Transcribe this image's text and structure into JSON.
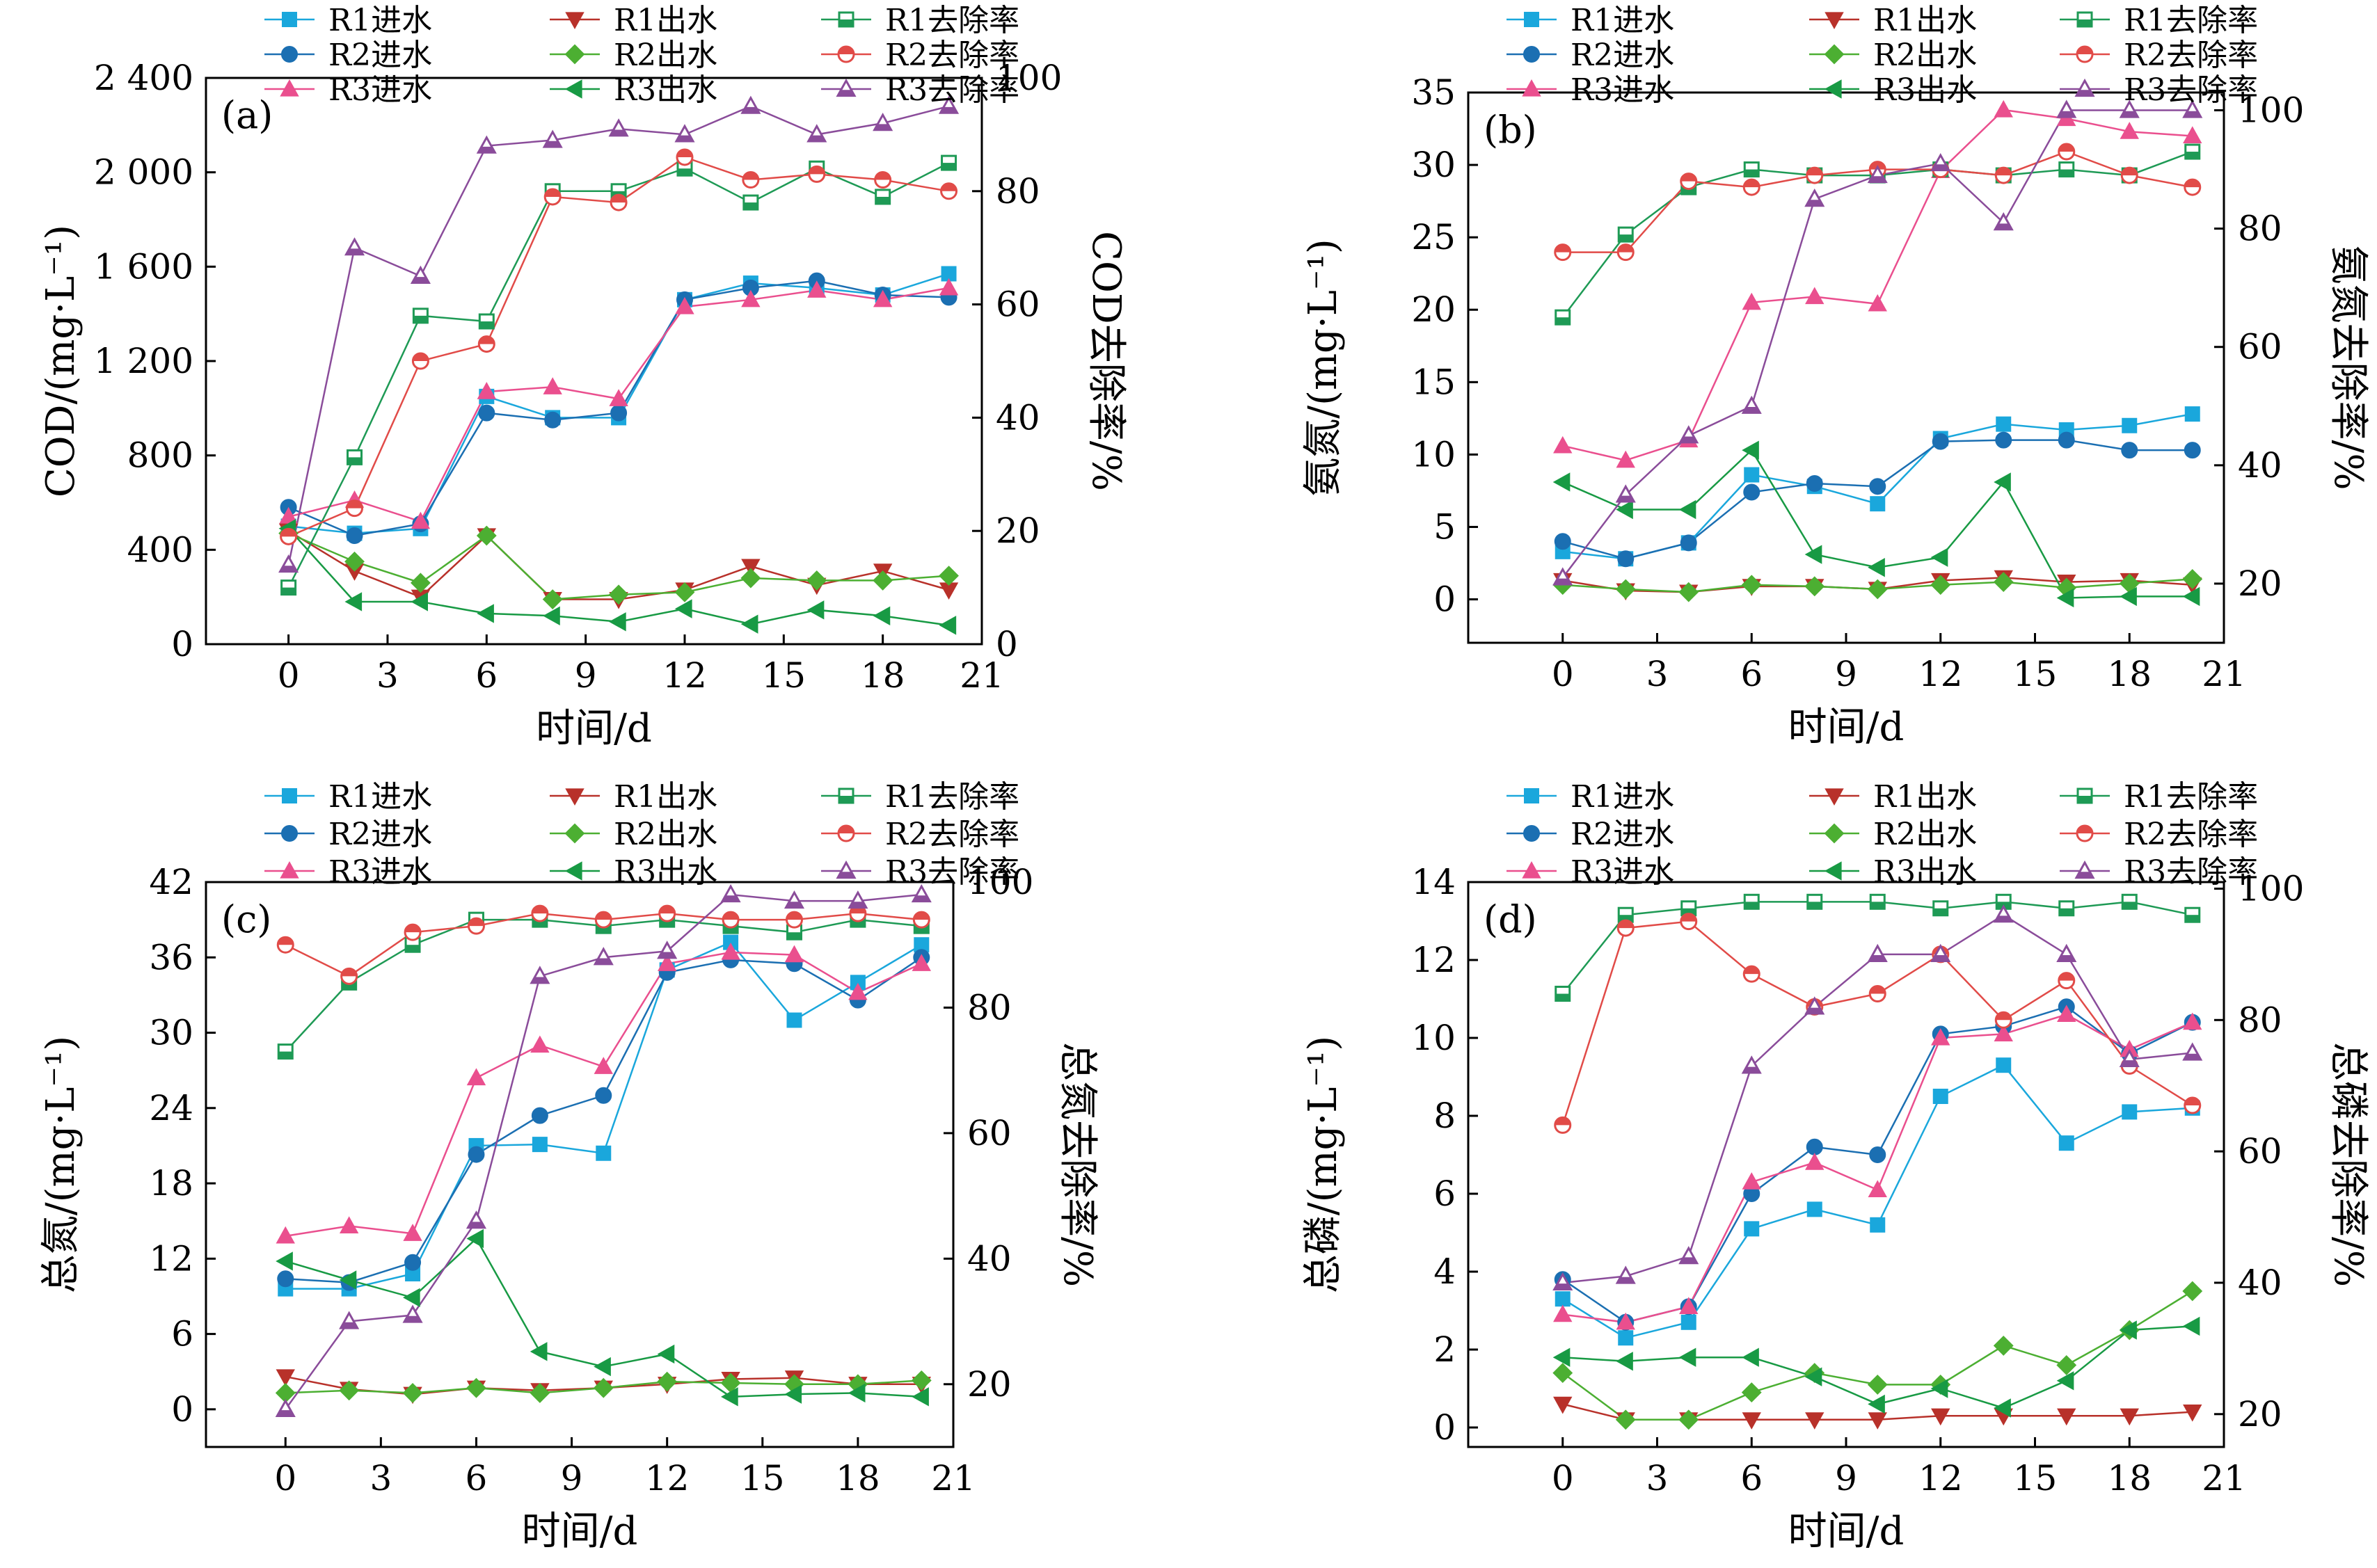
{
  "colors": {
    "R1进水": "#1aa7dc",
    "R1出水": "#b8312a",
    "R1去除率": "#1e9a55",
    "R2进水": "#1b6fb2",
    "R2出水": "#4caf32",
    "R2去除率": "#e14b48",
    "R3进水": "#ea4f8e",
    "R3出水": "#189a44",
    "R3去除率": "#8a4c9a"
  },
  "legend": {
    "items": [
      "R1进水",
      "R1出水",
      "R1去除率",
      "R2进水",
      "R2出水",
      "R2去除率",
      "R3进水",
      "R3出水",
      "R3去除率"
    ],
    "markers": [
      "square",
      "triangle-down",
      "square-half",
      "circle",
      "diamond",
      "circle-half",
      "triangle-up",
      "triangle-left",
      "triangle-up-half"
    ]
  },
  "chart_data": [
    {
      "type": "line",
      "panel_label": "(a)",
      "xlabel": "时间/d",
      "ylabel": "COD/(mg·L⁻¹)",
      "ylabel_right": "COD去除率/%",
      "xlim": [
        -2.5,
        21
      ],
      "ylim": [
        0,
        2400
      ],
      "ylim_right": [
        0,
        100
      ],
      "xticks": [
        0,
        3,
        6,
        9,
        12,
        15,
        18,
        21
      ],
      "yticks": [
        0,
        400,
        800,
        1200,
        1600,
        2000,
        2400
      ],
      "ytick_labels": [
        "0",
        "400",
        "800",
        "1 200",
        "1 600",
        "2 000",
        "2 400"
      ],
      "yticks_right": [
        0,
        20,
        40,
        60,
        80,
        100
      ],
      "x": [
        0,
        2,
        4,
        6,
        8,
        10,
        12,
        14,
        16,
        18,
        20
      ],
      "series": [
        {
          "name": "R1进水",
          "axis": "left",
          "values": [
            500,
            470,
            490,
            1050,
            960,
            960,
            1460,
            1530,
            1510,
            1480,
            1570
          ]
        },
        {
          "name": "R2进水",
          "axis": "left",
          "values": [
            580,
            460,
            510,
            980,
            950,
            980,
            1460,
            1510,
            1540,
            1480,
            1470
          ]
        },
        {
          "name": "R3进水",
          "axis": "left",
          "values": [
            540,
            610,
            520,
            1070,
            1090,
            1040,
            1430,
            1460,
            1500,
            1460,
            1510
          ]
        },
        {
          "name": "R1出水",
          "axis": "left",
          "values": [
            480,
            310,
            200,
            460,
            190,
            190,
            230,
            330,
            250,
            310,
            230
          ]
        },
        {
          "name": "R2出水",
          "axis": "left",
          "values": [
            470,
            350,
            260,
            460,
            190,
            210,
            220,
            280,
            270,
            270,
            290
          ]
        },
        {
          "name": "R3出水",
          "axis": "left",
          "values": [
            490,
            180,
            180,
            130,
            120,
            95,
            150,
            85,
            145,
            120,
            80
          ]
        },
        {
          "name": "R1去除率",
          "axis": "right",
          "values": [
            10,
            33,
            58,
            57,
            80,
            80,
            84,
            78,
            84,
            79,
            85
          ]
        },
        {
          "name": "R2去除率",
          "axis": "right",
          "values": [
            19,
            24,
            50,
            53,
            79,
            78,
            86,
            82,
            83,
            82,
            80
          ]
        },
        {
          "name": "R3去除率",
          "axis": "right",
          "values": [
            14,
            70,
            65,
            88,
            89,
            91,
            90,
            95,
            90,
            92,
            95
          ]
        }
      ]
    },
    {
      "type": "line",
      "panel_label": "(b)",
      "xlabel": "时间/d",
      "ylabel": "氨氮/(mg·L⁻¹)",
      "ylabel_right": "氨氮去除率/%",
      "xlim": [
        -3,
        21
      ],
      "ylim": [
        -3,
        35
      ],
      "ylim_right": [
        10,
        103
      ],
      "xticks": [
        0,
        3,
        6,
        9,
        12,
        15,
        18,
        21
      ],
      "yticks": [
        0,
        5,
        10,
        15,
        20,
        25,
        30,
        35
      ],
      "ytick_labels": [
        "0",
        "5",
        "10",
        "15",
        "20",
        "25",
        "30",
        "35"
      ],
      "yticks_right": [
        20,
        40,
        60,
        80,
        100
      ],
      "x": [
        0,
        2,
        4,
        6,
        8,
        10,
        12,
        14,
        16,
        18,
        20
      ],
      "series": [
        {
          "name": "R1进水",
          "axis": "left",
          "values": [
            3.3,
            2.8,
            3.9,
            8.6,
            7.8,
            6.6,
            11.1,
            12.1,
            11.7,
            12.0,
            12.8
          ]
        },
        {
          "name": "R2进水",
          "axis": "left",
          "values": [
            4.0,
            2.8,
            3.9,
            7.4,
            8.0,
            7.8,
            10.9,
            11.0,
            11.0,
            10.3,
            10.3
          ]
        },
        {
          "name": "R3进水",
          "axis": "left",
          "values": [
            10.6,
            9.6,
            11.0,
            20.5,
            20.9,
            20.4,
            29.6,
            33.8,
            33.2,
            32.3,
            32.0
          ]
        },
        {
          "name": "R1出水",
          "axis": "left",
          "values": [
            1.3,
            0.6,
            0.5,
            0.9,
            0.9,
            0.7,
            1.3,
            1.5,
            1.2,
            1.3,
            1.0
          ]
        },
        {
          "name": "R2出水",
          "axis": "left",
          "values": [
            1.0,
            0.7,
            0.5,
            1.0,
            0.9,
            0.7,
            1.0,
            1.2,
            0.8,
            1.1,
            1.4
          ]
        },
        {
          "name": "R3出水",
          "axis": "left",
          "values": [
            8.1,
            6.2,
            6.2,
            10.3,
            3.1,
            2.2,
            2.9,
            8.1,
            0.1,
            0.2,
            0.2
          ]
        },
        {
          "name": "R1去除率",
          "axis": "right",
          "values": [
            65,
            79,
            87,
            90,
            89,
            89,
            90,
            89,
            90,
            89,
            93
          ]
        },
        {
          "name": "R2去除率",
          "axis": "right",
          "values": [
            76,
            76,
            88,
            87,
            89,
            90,
            90,
            89,
            93,
            89,
            87
          ]
        },
        {
          "name": "R3去除率",
          "axis": "right",
          "values": [
            21,
            35,
            45,
            50,
            85,
            89,
            91,
            81,
            100,
            100,
            100
          ]
        }
      ]
    },
    {
      "type": "line",
      "panel_label": "(c)",
      "xlabel": "时间/d",
      "ylabel": "总氮/(mg·L⁻¹)",
      "ylabel_right": "总氮去除率/%",
      "xlim": [
        -2.5,
        21
      ],
      "ylim": [
        -3,
        42
      ],
      "ylim_right": [
        10,
        100
      ],
      "xticks": [
        0,
        3,
        6,
        9,
        12,
        15,
        18,
        21
      ],
      "yticks": [
        0,
        6,
        12,
        18,
        24,
        30,
        36,
        42
      ],
      "ytick_labels": [
        "0",
        "6",
        "12",
        "18",
        "24",
        "30",
        "36",
        "42"
      ],
      "yticks_right": [
        20,
        40,
        60,
        80,
        100
      ],
      "x": [
        0,
        2,
        4,
        6,
        8,
        10,
        12,
        14,
        16,
        18,
        20
      ],
      "series": [
        {
          "name": "R1进水",
          "axis": "left",
          "values": [
            9.6,
            9.6,
            10.8,
            21.0,
            21.1,
            20.4,
            35.0,
            37.2,
            31.0,
            34.0,
            37.0
          ]
        },
        {
          "name": "R2进水",
          "axis": "left",
          "values": [
            10.4,
            10.1,
            11.7,
            20.3,
            23.4,
            25.0,
            34.8,
            35.8,
            35.5,
            32.6,
            36.0
          ]
        },
        {
          "name": "R3进水",
          "axis": "left",
          "values": [
            13.8,
            14.6,
            14.0,
            26.4,
            29.0,
            27.3,
            35.5,
            36.4,
            36.2,
            33.2,
            35.5
          ]
        },
        {
          "name": "R1出水",
          "axis": "left",
          "values": [
            2.6,
            1.6,
            1.2,
            1.7,
            1.5,
            1.7,
            2.0,
            2.4,
            2.5,
            2.0,
            2.0
          ]
        },
        {
          "name": "R2出水",
          "axis": "left",
          "values": [
            1.3,
            1.5,
            1.3,
            1.7,
            1.3,
            1.7,
            2.2,
            2.1,
            2.0,
            2.0,
            2.3
          ]
        },
        {
          "name": "R3出水",
          "axis": "left",
          "values": [
            11.8,
            10.3,
            8.9,
            13.6,
            4.6,
            3.4,
            4.4,
            1.0,
            1.2,
            1.3,
            1.0
          ]
        },
        {
          "name": "R1去除率",
          "axis": "right",
          "values": [
            73,
            84,
            90,
            94,
            94,
            93,
            94,
            93,
            92,
            94,
            93
          ]
        },
        {
          "name": "R2去除率",
          "axis": "right",
          "values": [
            90,
            85,
            92,
            93,
            95,
            94,
            95,
            94,
            94,
            95,
            94
          ]
        },
        {
          "name": "R3去除率",
          "axis": "right",
          "values": [
            16,
            30,
            31,
            46,
            85,
            88,
            89,
            98,
            97,
            97,
            98
          ]
        }
      ]
    },
    {
      "type": "line",
      "panel_label": "(d)",
      "xlabel": "时间/d",
      "ylabel": "总磷/(mg·L⁻¹)",
      "ylabel_right": "总磷去除率/%",
      "xlim": [
        -3,
        21
      ],
      "ylim": [
        -0.5,
        14
      ],
      "ylim_right": [
        15,
        101
      ],
      "xticks": [
        0,
        3,
        6,
        9,
        12,
        15,
        18,
        21
      ],
      "yticks": [
        0,
        2,
        4,
        6,
        8,
        10,
        12,
        14
      ],
      "ytick_labels": [
        "0",
        "2",
        "4",
        "6",
        "8",
        "10",
        "12",
        "14"
      ],
      "yticks_right": [
        20,
        40,
        60,
        80,
        100
      ],
      "x": [
        0,
        2,
        4,
        6,
        8,
        10,
        12,
        14,
        16,
        18,
        20
      ],
      "series": [
        {
          "name": "R1进水",
          "axis": "left",
          "values": [
            3.3,
            2.3,
            2.7,
            5.1,
            5.6,
            5.2,
            8.5,
            9.3,
            7.3,
            8.1,
            8.2
          ]
        },
        {
          "name": "R2进水",
          "axis": "left",
          "values": [
            3.8,
            2.7,
            3.1,
            6.0,
            7.2,
            7.0,
            10.1,
            10.3,
            10.8,
            9.6,
            10.4
          ]
        },
        {
          "name": "R3进水",
          "axis": "left",
          "values": [
            2.9,
            2.7,
            3.1,
            6.3,
            6.8,
            6.1,
            10.0,
            10.1,
            10.6,
            9.7,
            10.4
          ]
        },
        {
          "name": "R1出水",
          "axis": "left",
          "values": [
            0.6,
            0.2,
            0.2,
            0.2,
            0.2,
            0.2,
            0.3,
            0.3,
            0.3,
            0.3,
            0.4
          ]
        },
        {
          "name": "R2出水",
          "axis": "left",
          "values": [
            1.4,
            0.2,
            0.2,
            0.9,
            1.4,
            1.1,
            1.1,
            2.1,
            1.6,
            2.5,
            3.5
          ]
        },
        {
          "name": "R3出水",
          "axis": "left",
          "values": [
            1.8,
            1.7,
            1.8,
            1.8,
            1.3,
            0.6,
            1.0,
            0.5,
            1.2,
            2.5,
            2.6
          ]
        },
        {
          "name": "R1去除率",
          "axis": "right",
          "values": [
            84,
            96,
            97,
            98,
            98,
            98,
            97,
            98,
            97,
            98,
            96
          ]
        },
        {
          "name": "R2去除率",
          "axis": "right",
          "values": [
            64,
            94,
            95,
            87,
            82,
            84,
            90,
            80,
            86,
            73,
            67
          ]
        },
        {
          "name": "R3去除率",
          "axis": "right",
          "values": [
            40,
            41,
            44,
            73,
            82,
            90,
            90,
            96,
            90,
            74,
            75
          ]
        }
      ]
    }
  ]
}
